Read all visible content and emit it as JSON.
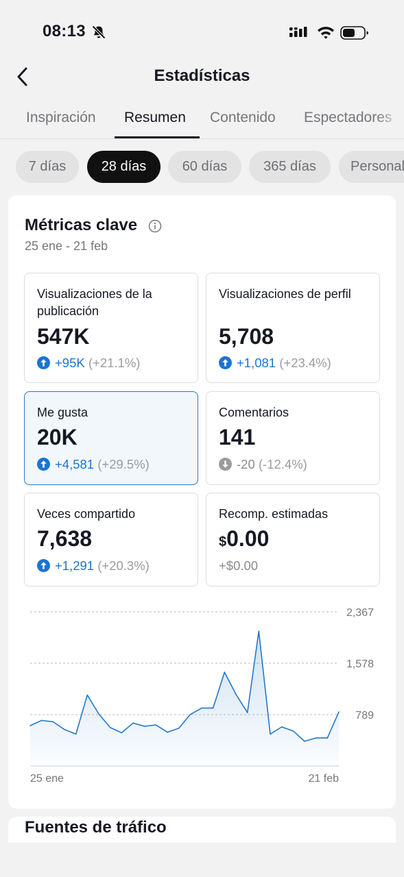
{
  "status_bar": {
    "time": "08:13"
  },
  "header": {
    "title": "Estadísticas"
  },
  "tabs": [
    {
      "label": "Inspiración",
      "active": false
    },
    {
      "label": "Resumen",
      "active": true
    },
    {
      "label": "Contenido",
      "active": false
    },
    {
      "label": "Espectadores",
      "active": false
    }
  ],
  "ranges": [
    {
      "label": "7 días",
      "active": false
    },
    {
      "label": "28 días",
      "active": true
    },
    {
      "label": "60 días",
      "active": false
    },
    {
      "label": "365 días",
      "active": false
    },
    {
      "label": "Personalizado",
      "active": false
    }
  ],
  "metrics_card": {
    "title": "Métricas clave",
    "date_range": "25 ene - 21 feb",
    "metrics": [
      {
        "label": "Visualizaciones de la publicación",
        "value": "547K",
        "delta": "+95K",
        "pct": "(+21.1%)",
        "trend": "up",
        "selected": false
      },
      {
        "label": "Visualizaciones de perfil",
        "value": "5,708",
        "delta": "+1,081",
        "pct": "(+23.4%)",
        "trend": "up",
        "selected": false
      },
      {
        "label": "Me gusta",
        "value": "20K",
        "delta": "+4,581",
        "pct": "(+29.5%)",
        "trend": "up",
        "selected": true
      },
      {
        "label": "Comentarios",
        "value": "141",
        "delta": "-20",
        "pct": "(-12.4%)",
        "trend": "down",
        "selected": false
      },
      {
        "label": "Veces compartido",
        "value": "7,638",
        "delta": "+1,291",
        "pct": "(+20.3%)",
        "trend": "up",
        "selected": false
      },
      {
        "label": "Recomp. estimadas",
        "currency": "$",
        "value": "0.00",
        "delta": "+$0.00",
        "pct": "",
        "trend": "neutral",
        "selected": false
      }
    ]
  },
  "chart_data": {
    "type": "area",
    "series_color": "#2578c6",
    "yticks": [
      0,
      789,
      1578,
      2367
    ],
    "ytick_labels": [
      "789",
      "1,578",
      "2,367"
    ],
    "ylim": [
      0,
      2367
    ],
    "x_start_label": "25 ene",
    "x_end_label": "21 feb",
    "x": [
      "25 ene",
      "26 ene",
      "27 ene",
      "28 ene",
      "29 ene",
      "30 ene",
      "31 ene",
      "1 feb",
      "2 feb",
      "3 feb",
      "4 feb",
      "5 feb",
      "6 feb",
      "7 feb",
      "8 feb",
      "9 feb",
      "10 feb",
      "11 feb",
      "12 feb",
      "13 feb",
      "14 feb",
      "15 feb",
      "16 feb",
      "17 feb",
      "18 feb",
      "19 feb",
      "20 feb",
      "21 feb"
    ],
    "values": [
      620,
      700,
      680,
      560,
      490,
      1090,
      800,
      590,
      510,
      660,
      610,
      630,
      520,
      580,
      790,
      890,
      890,
      1440,
      1100,
      820,
      2070,
      490,
      600,
      540,
      380,
      430,
      430,
      830
    ]
  },
  "next_section": {
    "title": "Fuentes de tráfico"
  }
}
